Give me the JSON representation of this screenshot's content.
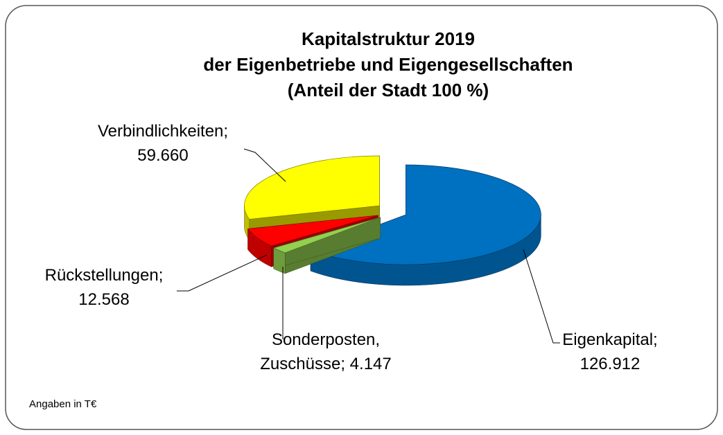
{
  "chart_data": {
    "type": "pie3d",
    "title": [
      "Kapitalstruktur 2019",
      "der Eigenbetriebe und Eigengesellschaften",
      "(Anteil der Stadt 100 %)"
    ],
    "categories": [
      "Eigenkapital",
      "Sonderposten, Zuschüsse",
      "Rückstellungen",
      "Verbindlichkeiten"
    ],
    "values": [
      126912,
      4147,
      12568,
      59660
    ],
    "value_labels": [
      "126.912",
      "4.147",
      "12.568",
      "59.660"
    ],
    "label_separator": ";",
    "colors": [
      "#0070c0",
      "#92d050",
      "#ff0000",
      "#ffff00"
    ],
    "note": "Angaben in T€"
  }
}
